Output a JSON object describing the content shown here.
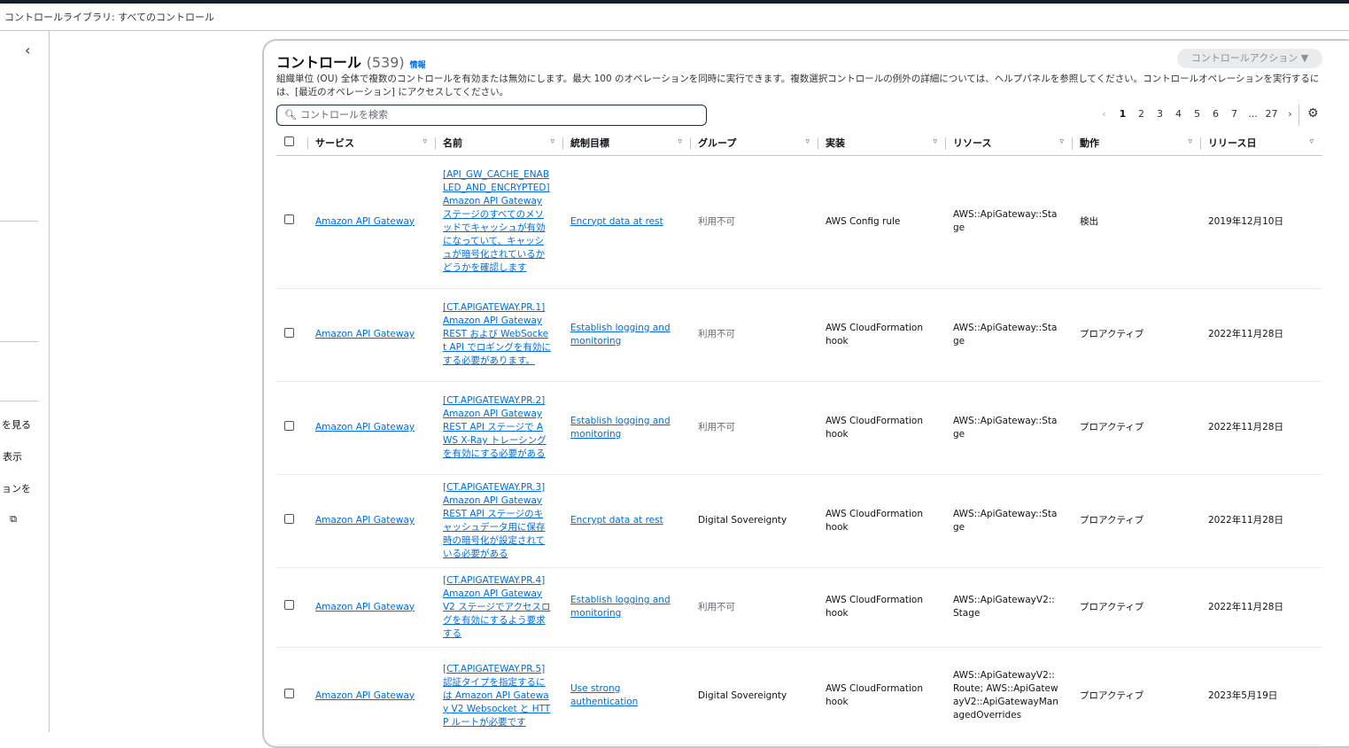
{
  "breadcrumb": "コントロールライブラリ: すべてのコントロール",
  "sidebar": {
    "items": [
      "を見る",
      "表示",
      "ョンを",
      "口"
    ]
  },
  "header": {
    "title": "コントロール",
    "count": "(539)",
    "info": "情報",
    "actions_label": "コントロールアクション ▼",
    "description": "組織単位 (OU) 全体で複数のコントロールを有効または無効にします。最大 100 のオペレーションを同時に実行できます。複数選択コントロールの例外の詳細については、ヘルプパネルを参照してください。コントロールオペレーションを実行するには、[最近のオペレーション] にアクセスしてください。"
  },
  "search": {
    "placeholder": "コントロールを検索"
  },
  "pagination": {
    "pages": [
      "1",
      "2",
      "3",
      "4",
      "5",
      "6",
      "7",
      "...",
      "27"
    ],
    "current": "1"
  },
  "columns": [
    "サービス",
    "名前",
    "統制目標",
    "グループ",
    "実装",
    "リソース",
    "動作",
    "リリース日"
  ],
  "rows": [
    {
      "service": "Amazon API Gateway",
      "name": "[API_GW_CACHE_ENABLED_AND_ENCRYPTED] Amazon API Gateway ステージのすべてのメソッドでキャッシュが有効になっていて、キャッシュが暗号化されているかどうかを確認します",
      "objective": "Encrypt data at rest",
      "group": "利用不可",
      "implementation": "AWS Config rule",
      "resource": "AWS::ApiGateway::Stage",
      "behavior": "検出",
      "release": "2019年12月10日"
    },
    {
      "service": "Amazon API Gateway",
      "name": "[CT.APIGATEWAY.PR.1] Amazon API Gateway REST および WebSocket API でロギングを有効にする必要があります。",
      "objective": "Establish logging and monitoring",
      "group": "利用不可",
      "implementation": "AWS CloudFormation hook",
      "resource": "AWS::ApiGateway::Stage",
      "behavior": "プロアクティブ",
      "release": "2022年11月28日"
    },
    {
      "service": "Amazon API Gateway",
      "name": "[CT.APIGATEWAY.PR.2] Amazon API Gateway REST API ステージで AWS X-Ray トレーシングを有効にする必要がある",
      "objective": "Establish logging and monitoring",
      "group": "利用不可",
      "implementation": "AWS CloudFormation hook",
      "resource": "AWS::ApiGateway::Stage",
      "behavior": "プロアクティブ",
      "release": "2022年11月28日"
    },
    {
      "service": "Amazon API Gateway",
      "name": "[CT.APIGATEWAY.PR.3] Amazon API Gateway REST API ステージのキャッシュデータ用に保存時の暗号化が設定されている必要がある",
      "objective": "Encrypt data at rest",
      "group": "Digital Sovereignty",
      "implementation": "AWS CloudFormation hook",
      "resource": "AWS::ApiGateway::Stage",
      "behavior": "プロアクティブ",
      "release": "2022年11月28日"
    },
    {
      "service": "Amazon API Gateway",
      "name": "[CT.APIGATEWAY.PR.4] Amazon API Gateway V2 ステージでアクセスログを有効にするよう要求する",
      "objective": "Establish logging and monitoring",
      "group": "利用不可",
      "implementation": "AWS CloudFormation hook",
      "resource": "AWS::ApiGatewayV2::Stage",
      "behavior": "プロアクティブ",
      "release": "2022年11月28日"
    },
    {
      "service": "Amazon API Gateway",
      "name": "[CT.APIGATEWAY.PR.5] 認証タイプを指定するには Amazon API Gateway V2 Websocket と HTTP ルートが必要です",
      "objective": "Use strong authentication",
      "group": "Digital Sovereignty",
      "implementation": "AWS CloudFormation hook",
      "resource": "AWS::ApiGatewayV2::Route; AWS::ApiGatewayV2::ApiGatewayManagedOverrides",
      "behavior": "プロアクティブ",
      "release": "2023年5月19日"
    }
  ]
}
